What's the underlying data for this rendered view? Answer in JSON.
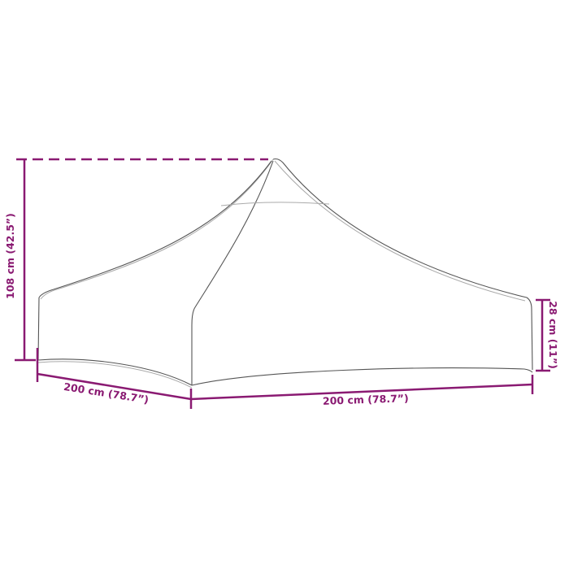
{
  "dimensions": {
    "height": "108 cm (42.5”)",
    "depth": "200 cm (78.7”)",
    "width": "200 cm (78.7”)",
    "side_height": "28 cm (11”)"
  },
  "colors": {
    "dimension": "#8a1a72",
    "outline": "#555555"
  }
}
